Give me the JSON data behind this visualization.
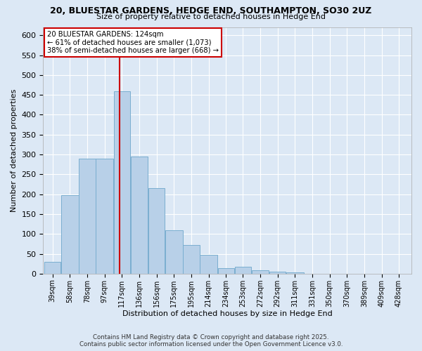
{
  "title": "20, BLUESTAR GARDENS, HEDGE END, SOUTHAMPTON, SO30 2UZ",
  "subtitle": "Size of property relative to detached houses in Hedge End",
  "xlabel": "Distribution of detached houses by size in Hedge End",
  "ylabel": "Number of detached properties",
  "bar_labels": [
    "39sqm",
    "58sqm",
    "78sqm",
    "97sqm",
    "117sqm",
    "136sqm",
    "156sqm",
    "175sqm",
    "195sqm",
    "214sqm",
    "234sqm",
    "253sqm",
    "272sqm",
    "292sqm",
    "311sqm",
    "331sqm",
    "350sqm",
    "370sqm",
    "389sqm",
    "409sqm",
    "428sqm"
  ],
  "bar_values": [
    30,
    197,
    290,
    290,
    460,
    295,
    215,
    110,
    73,
    47,
    14,
    18,
    8,
    5,
    4,
    0,
    0,
    0,
    0,
    0,
    0
  ],
  "bar_color": "#b8d0e8",
  "bar_edgecolor": "#7aaed0",
  "property_size": 124,
  "bin_edges": [
    39,
    58,
    78,
    97,
    117,
    136,
    156,
    175,
    195,
    214,
    234,
    253,
    272,
    292,
    311,
    331,
    350,
    370,
    389,
    409,
    428,
    447
  ],
  "annotation_title": "20 BLUESTAR GARDENS: 124sqm",
  "annotation_line1": "← 61% of detached houses are smaller (1,073)",
  "annotation_line2": "38% of semi-detached houses are larger (668) →",
  "vline_color": "#cc0000",
  "ylim": [
    0,
    620
  ],
  "yticks": [
    0,
    50,
    100,
    150,
    200,
    250,
    300,
    350,
    400,
    450,
    500,
    550,
    600
  ],
  "footer_line1": "Contains HM Land Registry data © Crown copyright and database right 2025.",
  "footer_line2": "Contains public sector information licensed under the Open Government Licence v3.0.",
  "bg_color": "#dce8f5",
  "plot_bg_color": "#dce8f5"
}
